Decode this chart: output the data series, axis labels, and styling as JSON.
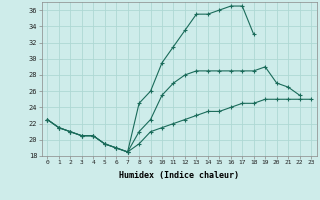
{
  "xlabel": "Humidex (Indice chaleur)",
  "background_color": "#ceecea",
  "grid_color": "#aed8d4",
  "line_color": "#1a6b5a",
  "xlim": [
    -0.5,
    23.5
  ],
  "ylim": [
    18,
    37
  ],
  "yticks": [
    18,
    20,
    22,
    24,
    26,
    28,
    30,
    32,
    34,
    36
  ],
  "xticks": [
    0,
    1,
    2,
    3,
    4,
    5,
    6,
    7,
    8,
    9,
    10,
    11,
    12,
    13,
    14,
    15,
    16,
    17,
    18,
    19,
    20,
    21,
    22,
    23
  ],
  "series": [
    {
      "x": [
        0,
        1,
        2,
        3,
        4,
        5,
        6,
        7,
        8,
        9,
        10,
        11,
        12,
        13,
        14,
        15,
        16,
        17,
        18
      ],
      "y": [
        22.5,
        21.5,
        21.0,
        20.5,
        20.5,
        19.5,
        19.0,
        18.5,
        24.5,
        26.0,
        29.5,
        31.5,
        33.5,
        35.5,
        35.5,
        36.0,
        36.5,
        36.5,
        33.0
      ]
    },
    {
      "x": [
        0,
        1,
        2,
        3,
        4,
        5,
        6,
        7,
        8,
        9,
        10,
        11,
        12,
        13,
        14,
        15,
        16,
        17,
        18,
        19,
        20,
        21,
        22
      ],
      "y": [
        22.5,
        21.5,
        21.0,
        20.5,
        20.5,
        19.5,
        19.0,
        18.5,
        21.0,
        22.5,
        25.5,
        27.0,
        28.0,
        28.5,
        28.5,
        28.5,
        28.5,
        28.5,
        28.5,
        29.0,
        27.0,
        26.5,
        25.5
      ]
    },
    {
      "x": [
        0,
        1,
        2,
        3,
        4,
        5,
        6,
        7,
        8,
        9,
        10,
        11,
        12,
        13,
        14,
        15,
        16,
        17,
        18,
        19,
        20,
        21,
        22,
        23
      ],
      "y": [
        22.5,
        21.5,
        21.0,
        20.5,
        20.5,
        19.5,
        19.0,
        18.5,
        19.5,
        21.0,
        21.5,
        22.0,
        22.5,
        23.0,
        23.5,
        23.5,
        24.0,
        24.5,
        24.5,
        25.0,
        25.0,
        25.0,
        25.0,
        25.0
      ]
    }
  ]
}
